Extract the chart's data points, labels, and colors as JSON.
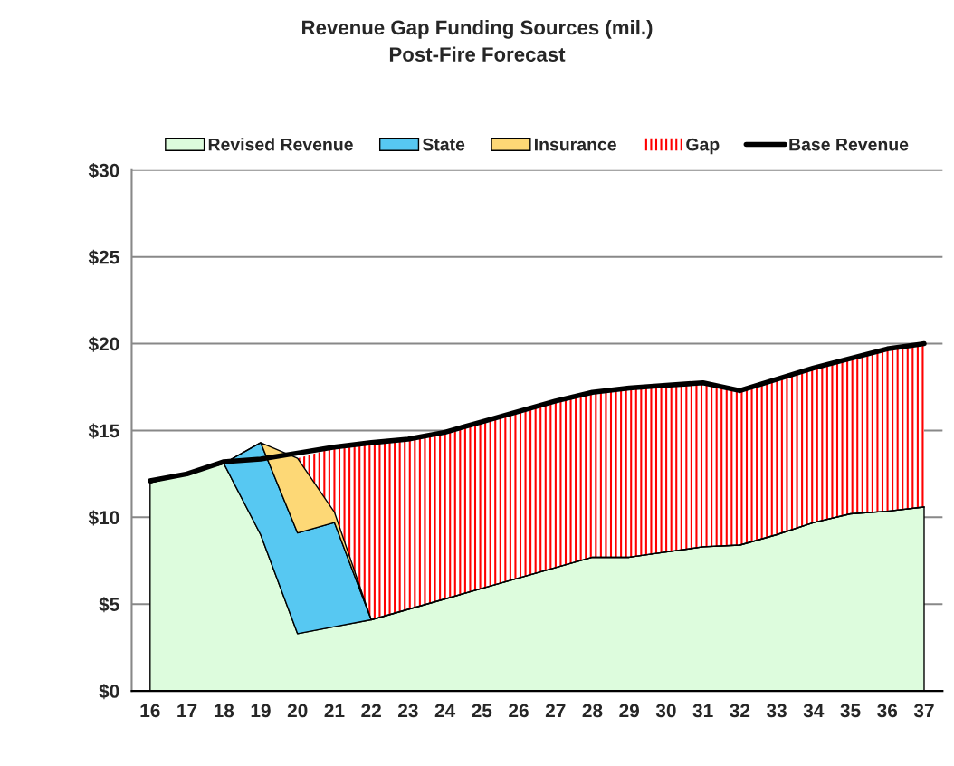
{
  "chart_data": {
    "type": "area",
    "title": "Revenue Gap Funding Sources (mil.)",
    "subtitle": "Post-Fire Forecast",
    "categories": [
      "16",
      "17",
      "18",
      "19",
      "20",
      "21",
      "22",
      "23",
      "24",
      "25",
      "26",
      "27",
      "28",
      "29",
      "30",
      "31",
      "32",
      "33",
      "34",
      "35",
      "36",
      "37"
    ],
    "stacked": true,
    "series": [
      {
        "name": "Revised Revenue",
        "color": "#ddfcdd",
        "values": [
          12.0,
          12.5,
          13.1,
          9.0,
          3.3,
          3.7,
          4.1,
          4.7,
          5.3,
          5.9,
          6.5,
          7.1,
          7.7,
          7.7,
          8.0,
          8.3,
          8.4,
          9.0,
          9.7,
          10.2,
          10.35,
          10.6
        ]
      },
      {
        "name": "State",
        "color": "#57c8f2",
        "values": [
          0,
          0,
          0,
          5.3,
          5.8,
          6.0,
          0,
          0,
          0,
          0,
          0,
          0,
          0,
          0,
          0,
          0,
          0,
          0,
          0,
          0,
          0,
          0
        ]
      },
      {
        "name": "Insurance",
        "color": "#fdd876",
        "values": [
          0,
          0,
          0,
          0,
          4.3,
          0.6,
          0,
          0,
          0,
          0,
          0,
          0,
          0,
          0,
          0,
          0,
          0,
          0,
          0,
          0,
          0,
          0
        ]
      },
      {
        "name": "Gap",
        "color": "#ff0000",
        "values": [
          0,
          0,
          0,
          0,
          0,
          3.7,
          10.2,
          9.8,
          9.6,
          9.6,
          9.6,
          9.6,
          9.5,
          9.75,
          9.6,
          9.45,
          8.9,
          8.95,
          8.9,
          8.95,
          9.35,
          9.4
        ]
      },
      {
        "name": "Base Revenue",
        "type": "line",
        "color": "#000000",
        "values": [
          12.1,
          12.5,
          13.2,
          13.35,
          13.7,
          14.05,
          14.3,
          14.5,
          14.9,
          15.5,
          16.1,
          16.7,
          17.2,
          17.45,
          17.6,
          17.75,
          17.3,
          17.95,
          18.6,
          19.15,
          19.7,
          20.0
        ]
      }
    ],
    "ylim": [
      0,
      30
    ],
    "yticks": [
      {
        "value": 0,
        "label": "$0"
      },
      {
        "value": 5,
        "label": "$5"
      },
      {
        "value": 10,
        "label": "$10"
      },
      {
        "value": 15,
        "label": "$15"
      },
      {
        "value": 20,
        "label": "$20"
      },
      {
        "value": 25,
        "label": "$25"
      },
      {
        "value": 30,
        "label": "$30"
      }
    ],
    "grid": "y",
    "legend": "top"
  }
}
